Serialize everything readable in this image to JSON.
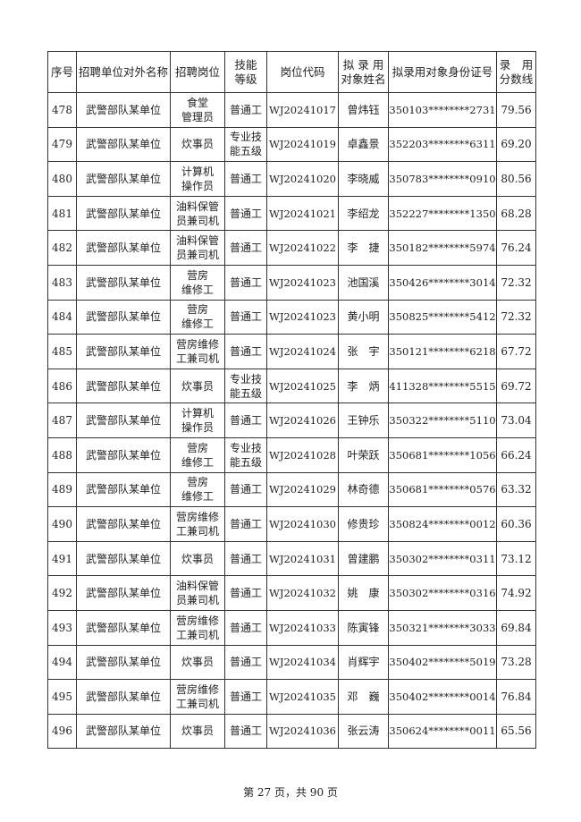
{
  "headers": [
    "序号",
    "招聘单位对外名称",
    "招聘岗位",
    "技能\n等级",
    "岗位代码",
    "拟 录 用\n对象姓名",
    "拟录用对象身份证号",
    "录　用\n分数线"
  ],
  "rows": [
    [
      "478",
      "武警部队某单位",
      "食堂\n管理员",
      "普通工",
      "WJ20241017",
      "曾炜钰",
      "350103********2731",
      "79.56"
    ],
    [
      "479",
      "武警部队某单位",
      "炊事员",
      "专业技\n能五级",
      "WJ20241019",
      "卓鑫景",
      "352203********6311",
      "69.20"
    ],
    [
      "480",
      "武警部队某单位",
      "计算机\n操作员",
      "普通工",
      "WJ20241020",
      "李晓威",
      "350783********0910",
      "80.56"
    ],
    [
      "481",
      "武警部队某单位",
      "油料保管\n员兼司机",
      "普通工",
      "WJ20241021",
      "李绍龙",
      "352227********1350",
      "68.28"
    ],
    [
      "482",
      "武警部队某单位",
      "油料保管\n员兼司机",
      "普通工",
      "WJ20241022",
      "李　捷",
      "350182********5974",
      "76.24"
    ],
    [
      "483",
      "武警部队某单位",
      "营房\n维修工",
      "普通工",
      "WJ20241023",
      "池国溪",
      "350426********3014",
      "72.32"
    ],
    [
      "484",
      "武警部队某单位",
      "营房\n维修工",
      "普通工",
      "WJ20241023",
      "黄小明",
      "350825********5412",
      "72.32"
    ],
    [
      "485",
      "武警部队某单位",
      "营房维修\n工兼司机",
      "普通工",
      "WJ20241024",
      "张　宇",
      "350121********6218",
      "67.72"
    ],
    [
      "486",
      "武警部队某单位",
      "炊事员",
      "专业技\n能五级",
      "WJ20241025",
      "李　炳",
      "411328********5515",
      "69.72"
    ],
    [
      "487",
      "武警部队某单位",
      "计算机\n操作员",
      "普通工",
      "WJ20241026",
      "王钟乐",
      "350322********5110",
      "73.04"
    ],
    [
      "488",
      "武警部队某单位",
      "营房\n维修工",
      "专业技\n能五级",
      "WJ20241028",
      "叶荣跃",
      "350681********1056",
      "66.24"
    ],
    [
      "489",
      "武警部队某单位",
      "营房\n维修工",
      "普通工",
      "WJ20241029",
      "林奇德",
      "350681********0576",
      "63.32"
    ],
    [
      "490",
      "武警部队某单位",
      "营房维修\n工兼司机",
      "普通工",
      "WJ20241030",
      "修贵珍",
      "350824********0012",
      "60.36"
    ],
    [
      "491",
      "武警部队某单位",
      "炊事员",
      "普通工",
      "WJ20241031",
      "曾建鹏",
      "350302********0311",
      "73.12"
    ],
    [
      "492",
      "武警部队某单位",
      "油料保管\n员兼司机",
      "普通工",
      "WJ20241032",
      "姚　康",
      "350302********0316",
      "74.92"
    ],
    [
      "493",
      "武警部队某单位",
      "营房维修\n工兼司机",
      "普通工",
      "WJ20241033",
      "陈寅锋",
      "350321********3033",
      "69.84"
    ],
    [
      "494",
      "武警部队某单位",
      "炊事员",
      "普通工",
      "WJ20241034",
      "肖辉宇",
      "350402********5019",
      "73.28"
    ],
    [
      "495",
      "武警部队某单位",
      "营房维修\n工兼司机",
      "普通工",
      "WJ20241035",
      "邓　巍",
      "350402********0014",
      "76.84"
    ],
    [
      "496",
      "武警部队某单位",
      "炊事员",
      "普通工",
      "WJ20241036",
      "张云涛",
      "350624********0011",
      "65.56"
    ]
  ],
  "footer": "第 27 页，共 90 页"
}
